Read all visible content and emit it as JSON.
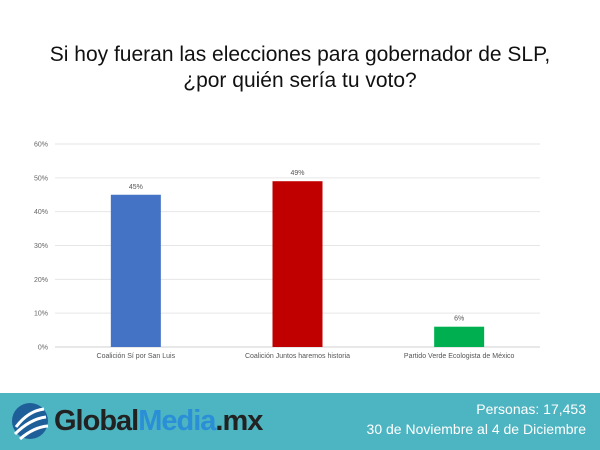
{
  "title_line1": "Si hoy fueran las elecciones para gobernador de SLP,",
  "title_line2": "¿por quién sería tu voto?",
  "chart_data": {
    "type": "bar",
    "categories": [
      "Coalición Sí por San Luis",
      "Coalición Juntos haremos historia",
      "Partido Verde Ecologista de México"
    ],
    "values": [
      45,
      49,
      6
    ],
    "data_labels": [
      "45%",
      "49%",
      "6%"
    ],
    "colors": [
      "#4472C4",
      "#C00000",
      "#00B050"
    ],
    "ylim": [
      0,
      60
    ],
    "yticks": [
      "0%",
      "10%",
      "20%",
      "30%",
      "40%",
      "50%",
      "60%"
    ],
    "grid": true,
    "xlabel": "",
    "ylabel": ""
  },
  "footer": {
    "logo_part1": "Global",
    "logo_part2": "Media",
    "logo_part3": ".mx",
    "personas": "Personas: 17,453",
    "dates": "30 de Noviembre al  4 de Diciembre",
    "color": "#4DB4C1"
  }
}
